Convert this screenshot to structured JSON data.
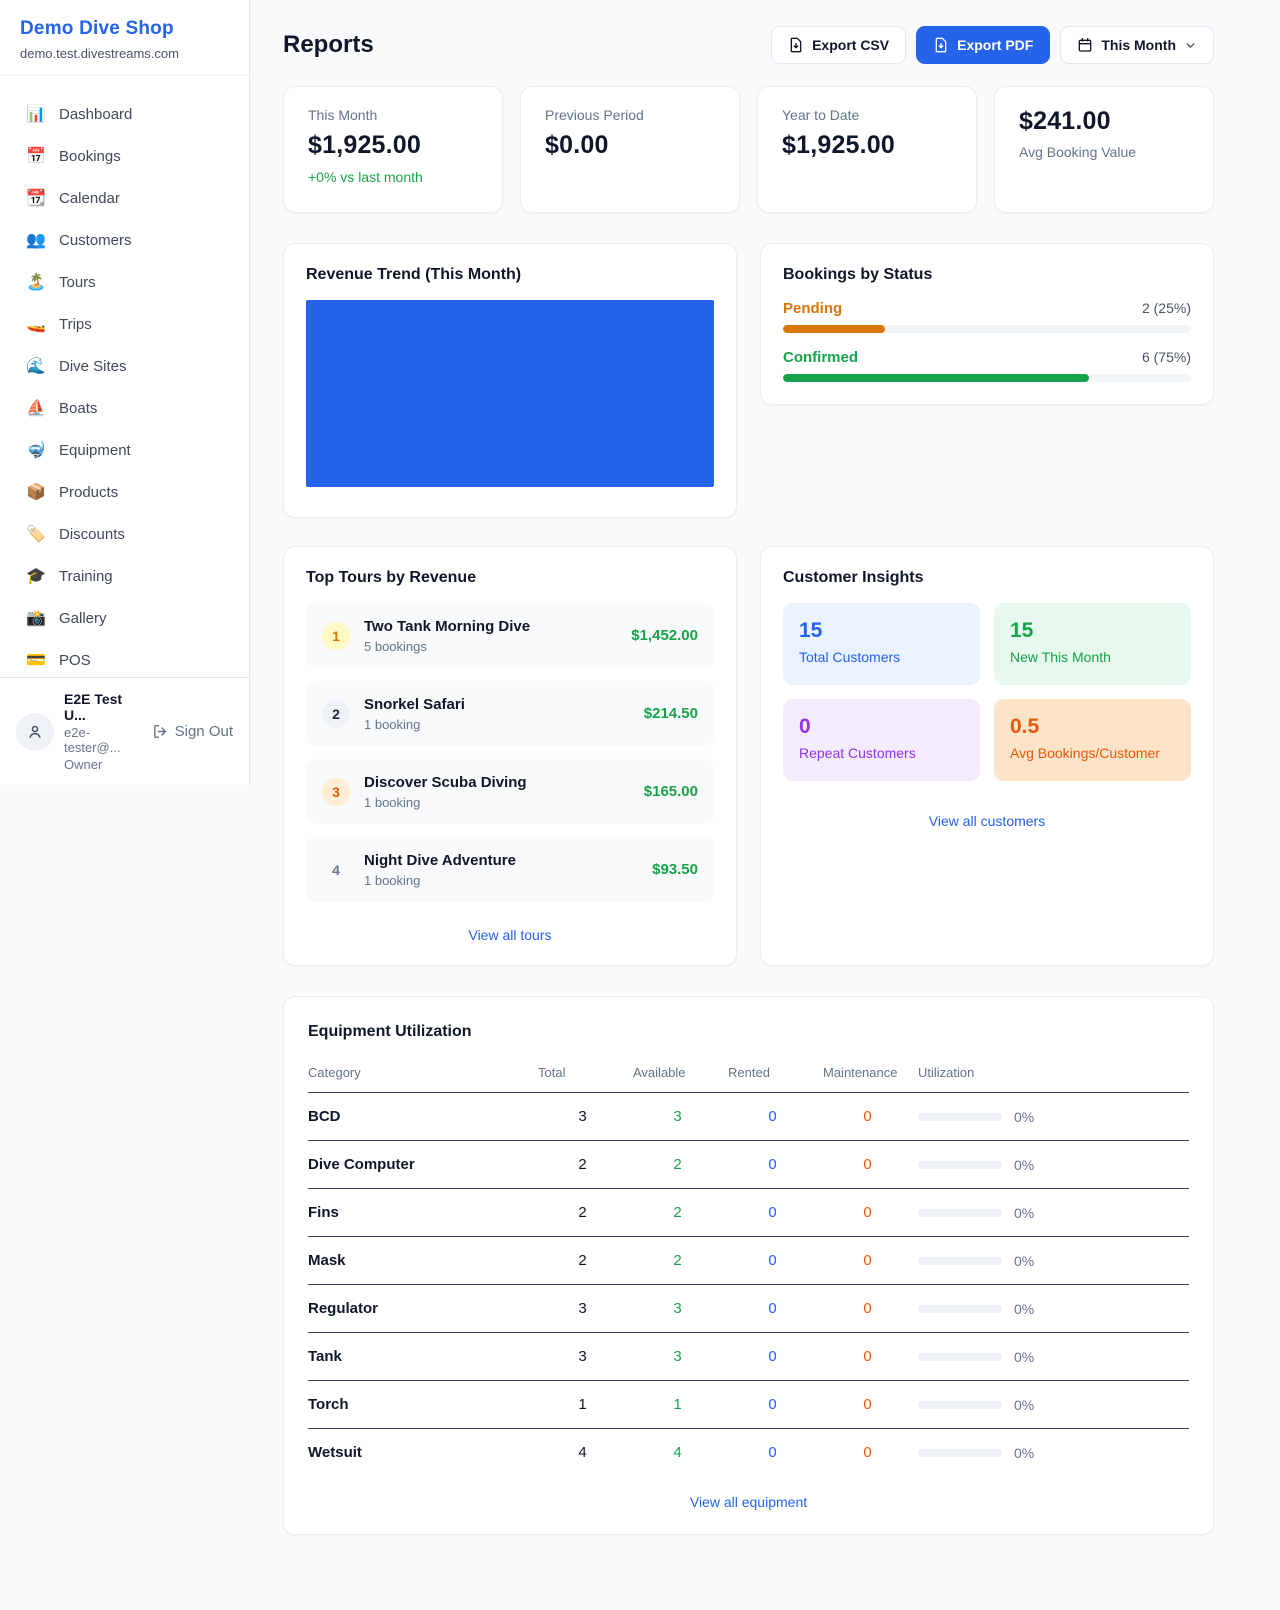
{
  "sidebar": {
    "shop_name": "Demo Dive Shop",
    "shop_domain": "demo.test.divestreams.com",
    "items": [
      {
        "id": "dashboard",
        "icon": "📊",
        "label": "Dashboard"
      },
      {
        "id": "bookings",
        "icon": "📅",
        "label": "Bookings"
      },
      {
        "id": "calendar",
        "icon": "📆",
        "label": "Calendar"
      },
      {
        "id": "customers",
        "icon": "👥",
        "label": "Customers"
      },
      {
        "id": "tours",
        "icon": "🏝️",
        "label": "Tours"
      },
      {
        "id": "trips",
        "icon": "🚤",
        "label": "Trips"
      },
      {
        "id": "dive-sites",
        "icon": "🌊",
        "label": "Dive Sites"
      },
      {
        "id": "boats",
        "icon": "⛵",
        "label": "Boats"
      },
      {
        "id": "equipment",
        "icon": "🤿",
        "label": "Equipment"
      },
      {
        "id": "products",
        "icon": "📦",
        "label": "Products"
      },
      {
        "id": "discounts",
        "icon": "🏷️",
        "label": "Discounts"
      },
      {
        "id": "training",
        "icon": "🎓",
        "label": "Training"
      },
      {
        "id": "gallery",
        "icon": "📸",
        "label": "Gallery"
      },
      {
        "id": "pos",
        "icon": "💳",
        "label": "POS"
      }
    ],
    "user": {
      "name": "E2E Test U...",
      "email": "e2e-tester@...",
      "role": "Owner",
      "sign_out_label": "Sign Out"
    }
  },
  "header": {
    "title": "Reports",
    "export_csv_label": "Export CSV",
    "export_pdf_label": "Export PDF",
    "period_label": "This Month"
  },
  "colors": {
    "accent_blue": "#2563eb",
    "green": "#16a34a",
    "orange_pending": "#d97706",
    "orange_maintenance": "#ea580c"
  },
  "stats": [
    {
      "label": "This Month",
      "value": "$1,925.00",
      "delta": "+0% vs last month"
    },
    {
      "label": "Previous Period",
      "value": "$0.00"
    },
    {
      "label": "Year to Date",
      "value": "$1,925.00"
    },
    {
      "label": "Avg Booking Value",
      "value": "$241.00"
    }
  ],
  "revenue_trend": {
    "title": "Revenue Trend (This Month)",
    "chart_color": "#2563eb"
  },
  "bookings_by_status": {
    "title": "Bookings by Status",
    "rows": [
      {
        "label": "Pending",
        "value_text": "2 (25%)",
        "pct": 25,
        "color": "#d97706"
      },
      {
        "label": "Confirmed",
        "value_text": "6 (75%)",
        "pct": 75,
        "color": "#16a34a"
      }
    ]
  },
  "top_tours": {
    "title": "Top Tours by Revenue",
    "view_all_label": "View all tours",
    "items": [
      {
        "rank": "1",
        "name": "Two Tank Morning Dive",
        "bookings": "5 bookings",
        "amount": "$1,452.00"
      },
      {
        "rank": "2",
        "name": "Snorkel Safari",
        "bookings": "1 booking",
        "amount": "$214.50"
      },
      {
        "rank": "3",
        "name": "Discover Scuba Diving",
        "bookings": "1 booking",
        "amount": "$165.00"
      },
      {
        "rank": "4",
        "name": "Night Dive Adventure",
        "bookings": "1 booking",
        "amount": "$93.50"
      }
    ]
  },
  "customer_insights": {
    "title": "Customer Insights",
    "view_all_label": "View all customers",
    "tiles": [
      {
        "value": "15",
        "label": "Total Customers"
      },
      {
        "value": "15",
        "label": "New This Month"
      },
      {
        "value": "0",
        "label": "Repeat Customers"
      },
      {
        "value": "0.5",
        "label": "Avg Bookings/Customer"
      }
    ]
  },
  "equipment": {
    "title": "Equipment Utilization",
    "view_all_label": "View all equipment",
    "columns": [
      "Category",
      "Total",
      "Available",
      "Rented",
      "Maintenance",
      "Utilization"
    ],
    "rows": [
      {
        "category": "BCD",
        "total": "3",
        "available": "3",
        "rented": "0",
        "maintenance": "0",
        "utilization": "0%"
      },
      {
        "category": "Dive Computer",
        "total": "2",
        "available": "2",
        "rented": "0",
        "maintenance": "0",
        "utilization": "0%"
      },
      {
        "category": "Fins",
        "total": "2",
        "available": "2",
        "rented": "0",
        "maintenance": "0",
        "utilization": "0%"
      },
      {
        "category": "Mask",
        "total": "2",
        "available": "2",
        "rented": "0",
        "maintenance": "0",
        "utilization": "0%"
      },
      {
        "category": "Regulator",
        "total": "3",
        "available": "3",
        "rented": "0",
        "maintenance": "0",
        "utilization": "0%"
      },
      {
        "category": "Tank",
        "total": "3",
        "available": "3",
        "rented": "0",
        "maintenance": "0",
        "utilization": "0%"
      },
      {
        "category": "Torch",
        "total": "1",
        "available": "1",
        "rented": "0",
        "maintenance": "0",
        "utilization": "0%"
      },
      {
        "category": "Wetsuit",
        "total": "4",
        "available": "4",
        "rented": "0",
        "maintenance": "0",
        "utilization": "0%"
      }
    ]
  }
}
